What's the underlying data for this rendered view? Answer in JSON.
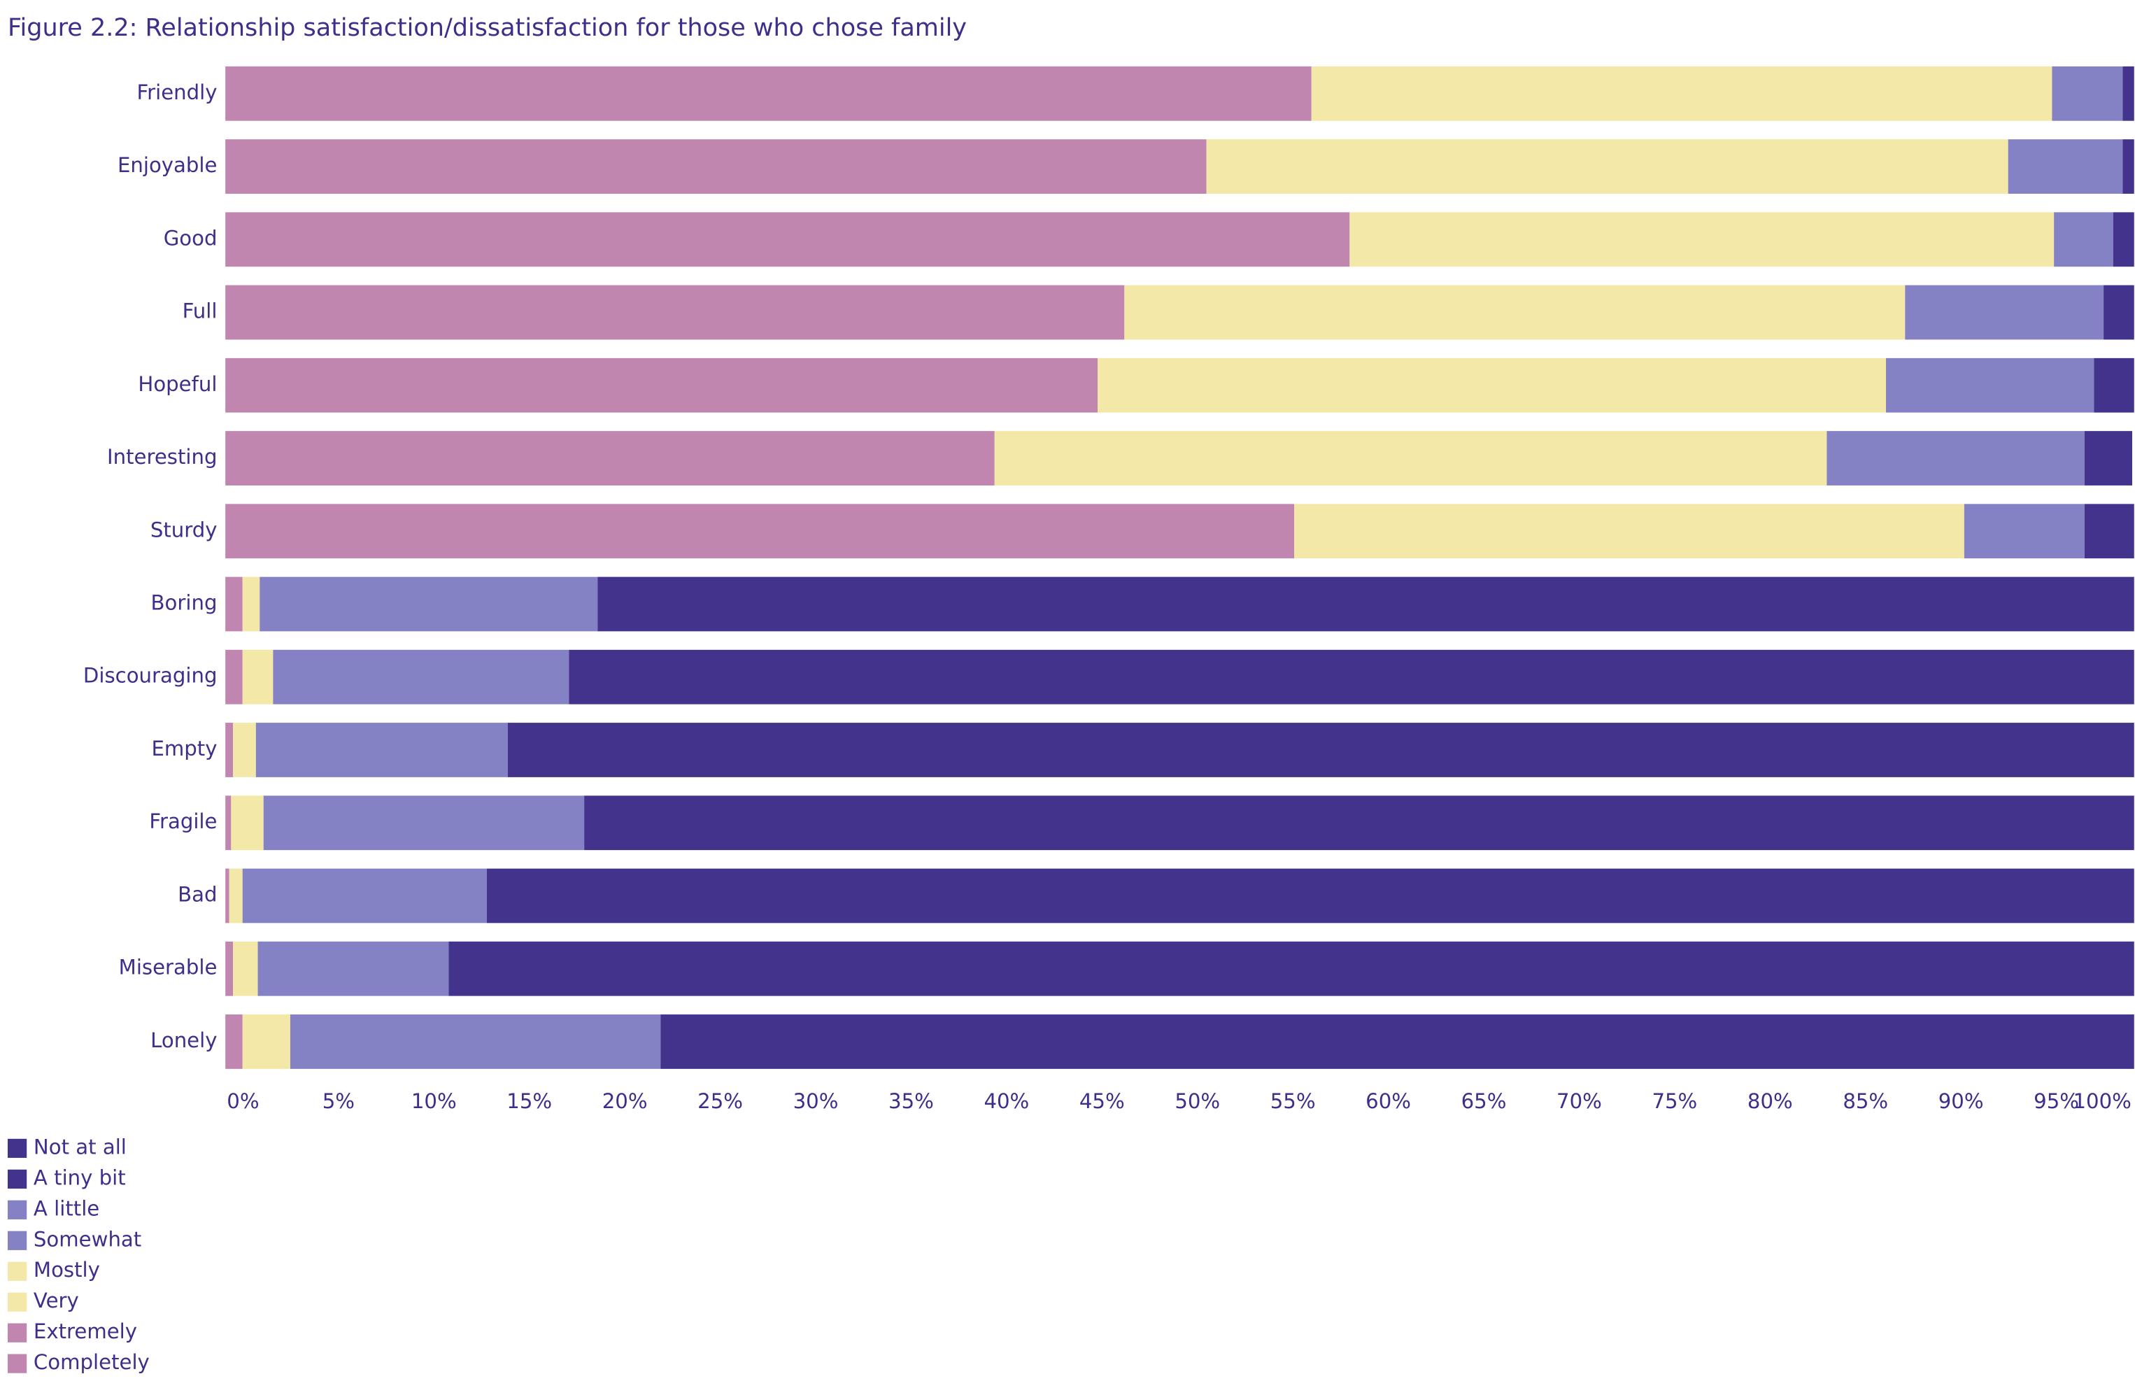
{
  "chart_data": {
    "type": "stacked-bar",
    "orientation": "horizontal",
    "title": "Figure 2.2: Relationship satisfaction/dissatisfaction for those who chose family",
    "categories": [
      "Friendly",
      "Enjoyable",
      "Good",
      "Full",
      "Hopeful",
      "Interesting",
      "Sturdy",
      "Boring",
      "Discouraging",
      "Empty",
      "Fragile",
      "Bad",
      "Miserable",
      "Lonely"
    ],
    "series": [
      {
        "name": "Not at all",
        "color": "#43338c",
        "values": [
          null,
          null,
          null,
          null,
          null,
          null,
          null,
          80.5,
          82.0,
          85.2,
          81.2,
          86.3,
          88.3,
          77.2
        ]
      },
      {
        "name": "A tiny bit",
        "color": "#43338c",
        "values": [
          0.6,
          0.6,
          1.1,
          1.6,
          2.1,
          2.5,
          2.6,
          null,
          null,
          null,
          null,
          null,
          null,
          null
        ]
      },
      {
        "name": "A little",
        "color": "#8481c4",
        "values": [
          null,
          null,
          null,
          null,
          null,
          null,
          null,
          17.7,
          15.5,
          13.2,
          16.8,
          12.8,
          10.0,
          19.4
        ]
      },
      {
        "name": "Somewhat",
        "color": "#8481c4",
        "values": [
          3.7,
          6.0,
          3.1,
          10.4,
          10.9,
          13.5,
          6.3,
          null,
          null,
          null,
          null,
          null,
          null,
          null
        ]
      },
      {
        "name": "Mostly",
        "color": "#f3e8a8",
        "values": [
          38.8,
          42.0,
          36.9,
          40.9,
          41.3,
          43.6,
          35.1,
          null,
          null,
          null,
          null,
          null,
          null,
          null
        ]
      },
      {
        "name": "Very",
        "color": "#f3e8a8",
        "values": [
          null,
          null,
          null,
          null,
          null,
          null,
          null,
          0.9,
          1.6,
          1.2,
          1.7,
          0.7,
          1.3,
          2.5
        ]
      },
      {
        "name": "Extremely",
        "color": "#c086b0",
        "values": [
          null,
          null,
          null,
          null,
          null,
          null,
          null,
          0.9,
          0.9,
          0.4,
          0.3,
          0.2,
          0.4,
          0.9
        ]
      },
      {
        "name": "Completely",
        "color": "#c086b0",
        "values": [
          56.9,
          51.4,
          58.9,
          47.1,
          45.7,
          40.3,
          56.0,
          null,
          null,
          null,
          null,
          null,
          null,
          null
        ]
      }
    ],
    "xlim": [
      0,
      100
    ],
    "xticks": [
      {
        "value": 0,
        "label": "0%"
      },
      {
        "value": 5,
        "label": "5%"
      },
      {
        "value": 10,
        "label": "10%"
      },
      {
        "value": 15,
        "label": "15%"
      },
      {
        "value": 20,
        "label": "20%"
      },
      {
        "value": 25,
        "label": "25%"
      },
      {
        "value": 30,
        "label": "30%"
      },
      {
        "value": 35,
        "label": "35%"
      },
      {
        "value": 40,
        "label": "40%"
      },
      {
        "value": 45,
        "label": "45%"
      },
      {
        "value": 50,
        "label": "50%"
      },
      {
        "value": 55,
        "label": "55%"
      },
      {
        "value": 60,
        "label": "60%"
      },
      {
        "value": 65,
        "label": "65%"
      },
      {
        "value": 70,
        "label": "70%"
      },
      {
        "value": 75,
        "label": "75%"
      },
      {
        "value": 80,
        "label": "80%"
      },
      {
        "value": 85,
        "label": "85%"
      },
      {
        "value": 90,
        "label": "90%"
      },
      {
        "value": 95,
        "label": "95%"
      },
      {
        "value": 100,
        "label": "100%"
      }
    ],
    "legend": "bottom-left"
  }
}
